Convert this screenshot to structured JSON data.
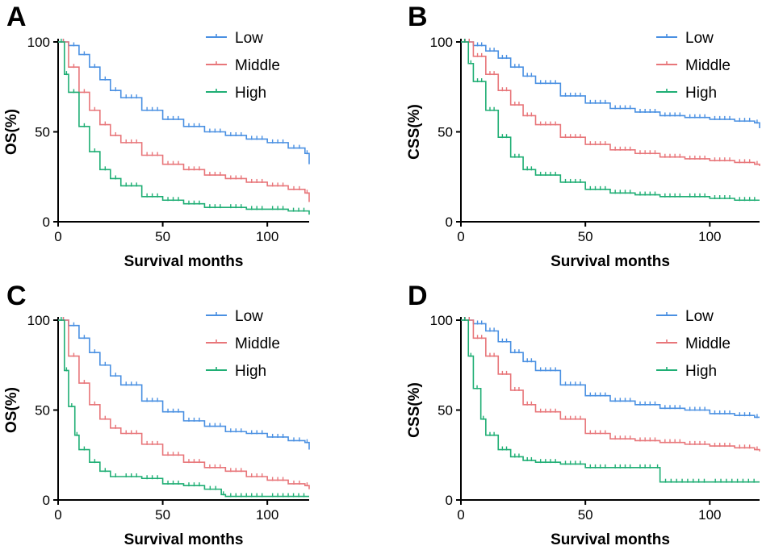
{
  "colors": {
    "Low": "#4a90e2",
    "Middle": "#e8767a",
    "High": "#1fae74"
  },
  "chart_data": [
    {
      "type": "line",
      "panel": "A",
      "xlabel": "Survival months",
      "ylabel": "OS(%)",
      "xlim": [
        0,
        120
      ],
      "ylim": [
        0,
        100
      ],
      "xticks": [
        "0",
        "50",
        "100"
      ],
      "yticks": [
        "0",
        "50",
        "100"
      ],
      "grid": false,
      "legend": "top-right",
      "series": [
        {
          "name": "Low",
          "x": [
            0,
            5,
            10,
            15,
            20,
            25,
            30,
            40,
            50,
            60,
            70,
            80,
            90,
            100,
            110,
            118,
            120
          ],
          "y": [
            100,
            98,
            93,
            86,
            79,
            73,
            69,
            62,
            57,
            53,
            50,
            48,
            46,
            44,
            41,
            38,
            32
          ]
        },
        {
          "name": "Middle",
          "x": [
            0,
            5,
            10,
            15,
            20,
            25,
            30,
            40,
            50,
            60,
            70,
            80,
            90,
            100,
            110,
            118,
            120
          ],
          "y": [
            100,
            86,
            72,
            62,
            54,
            48,
            44,
            37,
            32,
            29,
            26,
            24,
            22,
            20,
            18,
            16,
            11
          ]
        },
        {
          "name": "High",
          "x": [
            0,
            3,
            5,
            10,
            15,
            20,
            25,
            30,
            40,
            50,
            60,
            70,
            80,
            90,
            100,
            110,
            120
          ],
          "y": [
            100,
            82,
            72,
            53,
            39,
            29,
            24,
            20,
            14,
            12,
            10,
            8,
            8,
            7,
            7,
            6,
            4
          ]
        }
      ]
    },
    {
      "type": "line",
      "panel": "B",
      "xlabel": "Survival months",
      "ylabel": "CSS(%)",
      "xlim": [
        0,
        120
      ],
      "ylim": [
        0,
        100
      ],
      "xticks": [
        "0",
        "50",
        "100"
      ],
      "yticks": [
        "0",
        "50",
        "100"
      ],
      "grid": false,
      "legend": "top-right",
      "series": [
        {
          "name": "Low",
          "x": [
            0,
            5,
            10,
            15,
            20,
            25,
            30,
            40,
            50,
            60,
            70,
            80,
            90,
            100,
            110,
            118,
            120
          ],
          "y": [
            100,
            98,
            95,
            91,
            86,
            81,
            77,
            70,
            66,
            63,
            61,
            59,
            58,
            57,
            56,
            55,
            52
          ]
        },
        {
          "name": "Middle",
          "x": [
            0,
            5,
            10,
            15,
            20,
            25,
            30,
            40,
            50,
            60,
            70,
            80,
            90,
            100,
            110,
            118,
            120
          ],
          "y": [
            100,
            92,
            82,
            73,
            65,
            59,
            54,
            47,
            43,
            40,
            38,
            36,
            35,
            34,
            33,
            32,
            31
          ]
        },
        {
          "name": "High",
          "x": [
            0,
            3,
            5,
            10,
            15,
            20,
            25,
            30,
            40,
            50,
            60,
            70,
            80,
            90,
            100,
            110,
            120
          ],
          "y": [
            100,
            88,
            78,
            62,
            47,
            36,
            29,
            26,
            22,
            18,
            16,
            15,
            14,
            14,
            13,
            12,
            12
          ]
        }
      ]
    },
    {
      "type": "line",
      "panel": "C",
      "xlabel": "Survival months",
      "ylabel": "OS(%)",
      "xlim": [
        0,
        120
      ],
      "ylim": [
        0,
        100
      ],
      "xticks": [
        "0",
        "50",
        "100"
      ],
      "yticks": [
        "0",
        "50",
        "100"
      ],
      "grid": false,
      "legend": "top-right",
      "series": [
        {
          "name": "Low",
          "x": [
            0,
            5,
            10,
            15,
            20,
            25,
            30,
            40,
            50,
            60,
            70,
            80,
            90,
            100,
            110,
            118,
            120
          ],
          "y": [
            100,
            97,
            90,
            82,
            75,
            69,
            64,
            55,
            49,
            44,
            41,
            38,
            37,
            35,
            33,
            32,
            28
          ]
        },
        {
          "name": "Middle",
          "x": [
            0,
            5,
            10,
            15,
            20,
            25,
            30,
            40,
            50,
            60,
            70,
            80,
            90,
            100,
            110,
            118,
            120
          ],
          "y": [
            100,
            80,
            65,
            53,
            45,
            40,
            37,
            31,
            25,
            21,
            18,
            16,
            13,
            11,
            9,
            8,
            6
          ]
        },
        {
          "name": "High",
          "x": [
            0,
            3,
            5,
            8,
            10,
            15,
            20,
            25,
            30,
            40,
            50,
            60,
            70,
            78,
            80,
            100,
            120
          ],
          "y": [
            100,
            72,
            52,
            36,
            28,
            21,
            16,
            13,
            13,
            12,
            9,
            8,
            6,
            3,
            2,
            2,
            2
          ]
        }
      ]
    },
    {
      "type": "line",
      "panel": "D",
      "xlabel": "Survival months",
      "ylabel": "CSS(%)",
      "xlim": [
        0,
        120
      ],
      "ylim": [
        0,
        100
      ],
      "xticks": [
        "0",
        "50",
        "100"
      ],
      "yticks": [
        "0",
        "50",
        "100"
      ],
      "grid": false,
      "legend": "top-right",
      "series": [
        {
          "name": "Low",
          "x": [
            0,
            5,
            10,
            15,
            20,
            25,
            30,
            40,
            50,
            60,
            70,
            80,
            90,
            100,
            110,
            118,
            120
          ],
          "y": [
            100,
            98,
            94,
            88,
            82,
            77,
            72,
            64,
            58,
            55,
            53,
            51,
            50,
            48,
            47,
            46,
            46
          ]
        },
        {
          "name": "Middle",
          "x": [
            0,
            5,
            10,
            15,
            20,
            25,
            30,
            40,
            50,
            60,
            70,
            80,
            90,
            100,
            110,
            118,
            120
          ],
          "y": [
            100,
            90,
            80,
            70,
            61,
            53,
            49,
            45,
            37,
            34,
            33,
            32,
            31,
            30,
            29,
            28,
            27
          ]
        },
        {
          "name": "High",
          "x": [
            0,
            3,
            5,
            8,
            10,
            15,
            20,
            25,
            30,
            40,
            50,
            60,
            70,
            78,
            80,
            100,
            120
          ],
          "y": [
            100,
            80,
            62,
            45,
            36,
            28,
            24,
            22,
            21,
            20,
            18,
            18,
            18,
            18,
            10,
            10,
            10
          ]
        }
      ]
    }
  ]
}
